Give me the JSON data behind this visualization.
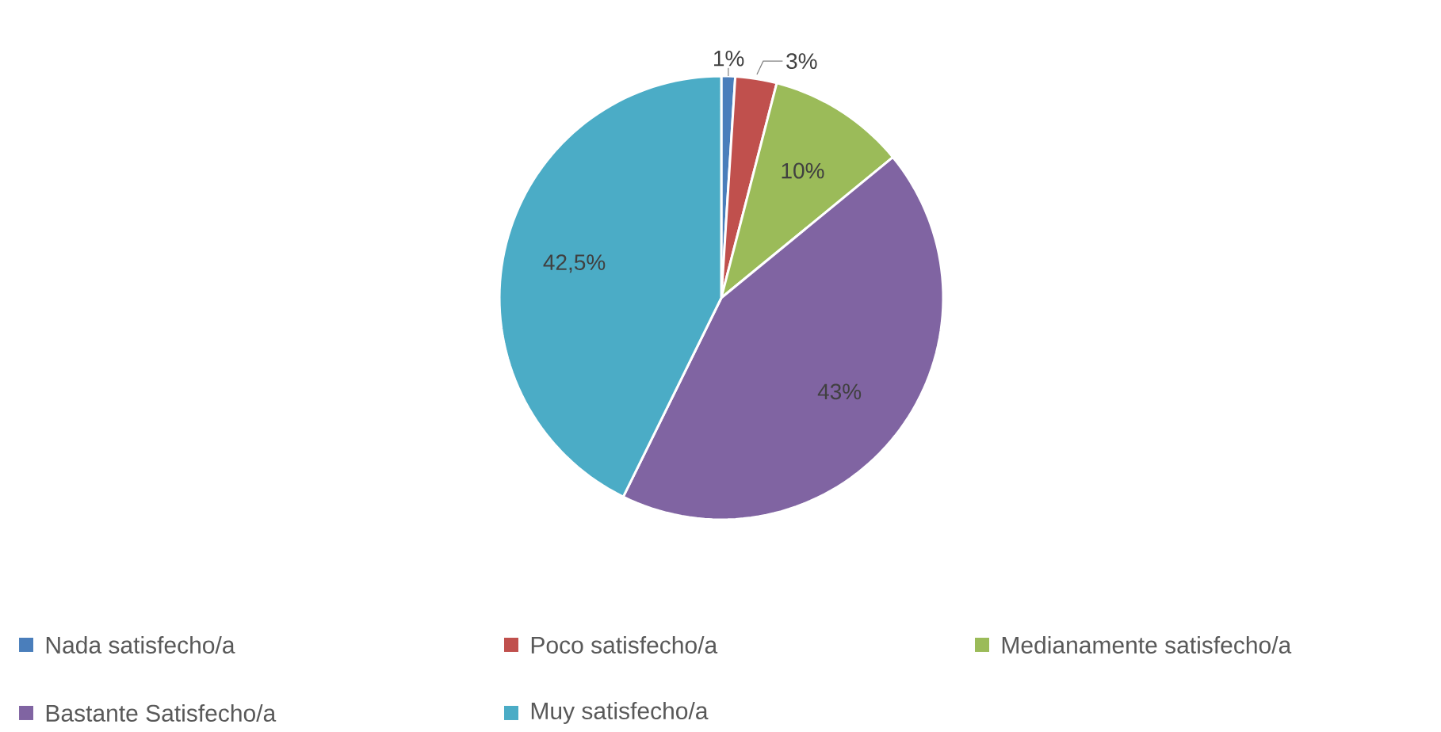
{
  "chart_data": {
    "type": "pie",
    "categories": [
      "Nada satisfecho/a",
      "Poco satisfecho/a",
      "Medianamente satisfecho/a",
      "Bastante Satisfecho/a",
      "Muy satisfecho/a"
    ],
    "values": [
      1,
      3,
      10,
      43,
      42.5
    ],
    "colors": [
      "#4a7ebb",
      "#c0504d",
      "#9bbb59",
      "#8064a2",
      "#4bacc6"
    ],
    "value_labels": [
      "1%",
      "3%",
      "10%",
      "43%",
      "42,5%"
    ],
    "legend": "bottom"
  }
}
